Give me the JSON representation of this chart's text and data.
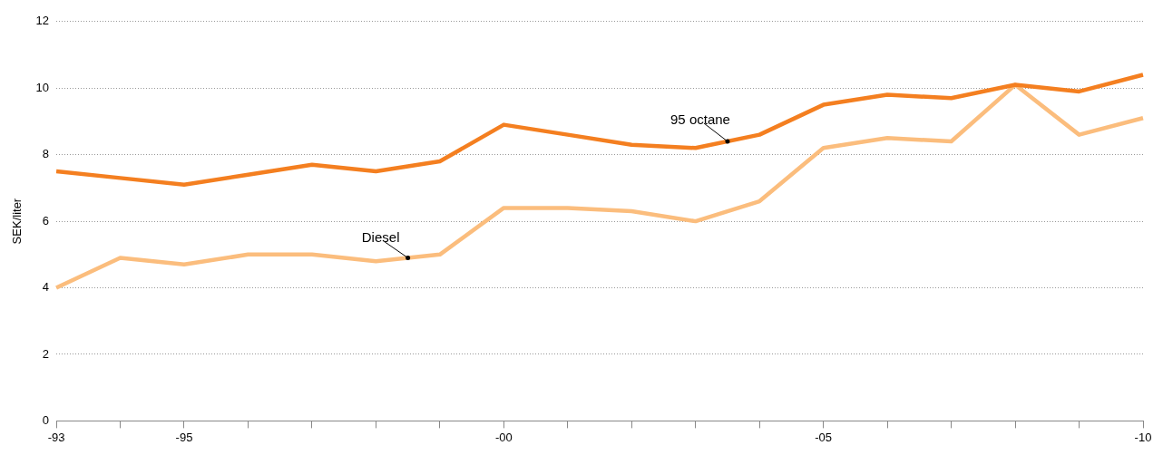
{
  "chart_data": {
    "type": "line",
    "ylabel": "SEK/liter",
    "categories": [
      "-93",
      null,
      "-95",
      null,
      null,
      null,
      null,
      "-00",
      null,
      null,
      null,
      null,
      "-05",
      null,
      null,
      null,
      null,
      "-10"
    ],
    "series": [
      {
        "name": "95 octane",
        "color": "#f47f20",
        "values": [
          7.5,
          7.3,
          7.1,
          7.4,
          7.7,
          7.5,
          7.8,
          8.9,
          8.6,
          8.3,
          8.2,
          8.6,
          9.5,
          9.8,
          9.7,
          10.1,
          9.9,
          10.4
        ]
      },
      {
        "name": "Diesel",
        "color": "#fbbd7d",
        "values": [
          4.0,
          4.9,
          4.7,
          5.0,
          5.0,
          4.8,
          5.0,
          6.4,
          6.4,
          6.3,
          6.0,
          6.6,
          8.2,
          8.5,
          8.4,
          10.1,
          8.6,
          9.1
        ]
      }
    ],
    "ylim": [
      0,
      12
    ],
    "yticks": [
      0,
      2,
      4,
      6,
      8,
      10,
      12
    ],
    "grid": "y",
    "legend": false,
    "marker": "none",
    "line_style": "solid"
  }
}
